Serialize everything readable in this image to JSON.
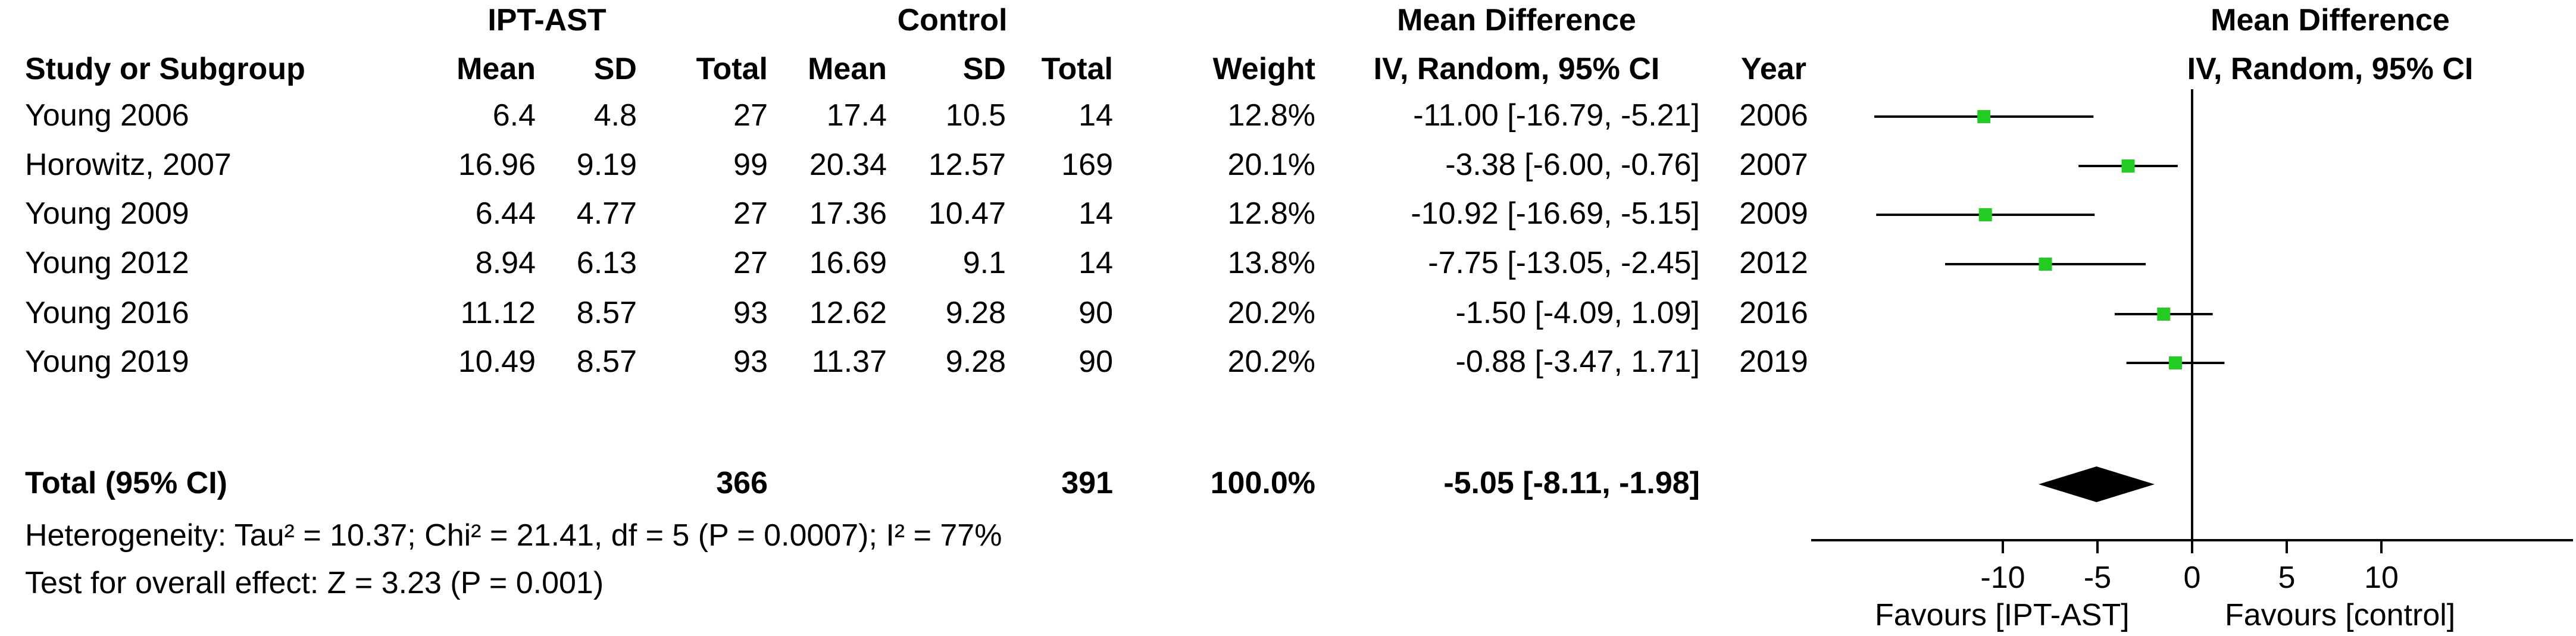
{
  "headers": {
    "group_exp": "IPT-AST",
    "group_ctrl": "Control",
    "md_top": "Mean Difference",
    "md_sub": "IV, Random, 95% CI",
    "study": "Study or Subgroup",
    "mean": "Mean",
    "sd": "SD",
    "total": "Total",
    "weight": "Weight",
    "year": "Year",
    "plot_top": "Mean Difference",
    "plot_sub": "IV, Random, 95% CI"
  },
  "rows": [
    {
      "study": "Young 2006",
      "mean1": "6.4",
      "sd1": "4.8",
      "total1": "27",
      "mean2": "17.4",
      "sd2": "10.5",
      "total2": "14",
      "weight": "12.8%",
      "ci": "-11.00 [-16.79, -5.21]",
      "year": "2006"
    },
    {
      "study": "Horowitz, 2007",
      "mean1": "16.96",
      "sd1": "9.19",
      "total1": "99",
      "mean2": "20.34",
      "sd2": "12.57",
      "total2": "169",
      "weight": "20.1%",
      "ci": "-3.38 [-6.00, -0.76]",
      "year": "2007"
    },
    {
      "study": "Young 2009",
      "mean1": "6.44",
      "sd1": "4.77",
      "total1": "27",
      "mean2": "17.36",
      "sd2": "10.47",
      "total2": "14",
      "weight": "12.8%",
      "ci": "-10.92 [-16.69, -5.15]",
      "year": "2009"
    },
    {
      "study": "Young 2012",
      "mean1": "8.94",
      "sd1": "6.13",
      "total1": "27",
      "mean2": "16.69",
      "sd2": "9.1",
      "total2": "14",
      "weight": "13.8%",
      "ci": "-7.75 [-13.05, -2.45]",
      "year": "2012"
    },
    {
      "study": "Young  2016",
      "mean1": "11.12",
      "sd1": "8.57",
      "total1": "93",
      "mean2": "12.62",
      "sd2": "9.28",
      "total2": "90",
      "weight": "20.2%",
      "ci": "-1.50 [-4.09, 1.09]",
      "year": "2016"
    },
    {
      "study": "Young 2019",
      "mean1": "10.49",
      "sd1": "8.57",
      "total1": "93",
      "mean2": "11.37",
      "sd2": "9.28",
      "total2": "90",
      "weight": "20.2%",
      "ci": "-0.88 [-3.47, 1.71]",
      "year": "2019"
    }
  ],
  "total": {
    "label": "Total (95% CI)",
    "total1": "366",
    "total2": "391",
    "weight": "100.0%",
    "ci": "-5.05 [-8.11, -1.98]"
  },
  "footer": {
    "heterogeneity": "Heterogeneity: Tau² = 10.37; Chi² = 21.41, df = 5 (P = 0.0007); I² = 77%",
    "overall": "Test for overall effect: Z = 3.23 (P = 0.001)"
  },
  "chart_data": {
    "type": "forest",
    "xlim": [
      -20,
      20
    ],
    "x_ticks": [
      -10,
      -5,
      0,
      5,
      10
    ],
    "x_tick_labels": [
      "-10",
      "-5",
      "0",
      "5",
      "10"
    ],
    "favours_left": "Favours [IPT-AST]",
    "favours_right": "Favours [control]",
    "marker_color": "#22cc22",
    "diamond_color": "#000000",
    "studies": [
      {
        "name": "Young 2006",
        "estimate": -11.0,
        "lower": -16.79,
        "upper": -5.21,
        "weight": 12.8
      },
      {
        "name": "Horowitz, 2007",
        "estimate": -3.38,
        "lower": -6.0,
        "upper": -0.76,
        "weight": 20.1
      },
      {
        "name": "Young 2009",
        "estimate": -10.92,
        "lower": -16.69,
        "upper": -5.15,
        "weight": 12.8
      },
      {
        "name": "Young 2012",
        "estimate": -7.75,
        "lower": -13.05,
        "upper": -2.45,
        "weight": 13.8
      },
      {
        "name": "Young  2016",
        "estimate": -1.5,
        "lower": -4.09,
        "upper": 1.09,
        "weight": 20.2
      },
      {
        "name": "Young 2019",
        "estimate": -0.88,
        "lower": -3.47,
        "upper": 1.71,
        "weight": 20.2
      }
    ],
    "pooled": {
      "estimate": -5.05,
      "lower": -8.11,
      "upper": -1.98
    }
  }
}
